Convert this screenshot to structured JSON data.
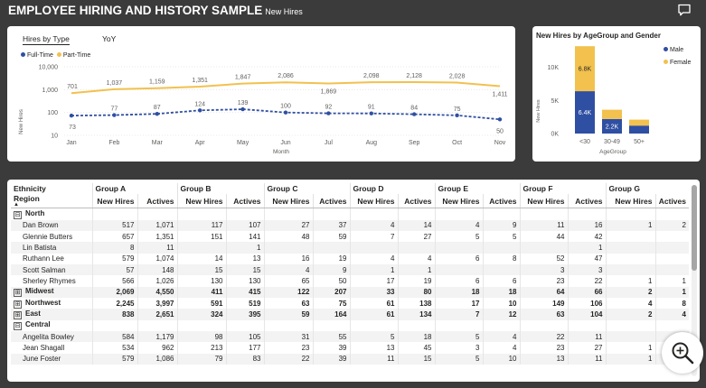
{
  "header": {
    "title": "EMPLOYEE HIRING AND HISTORY SAMPLE",
    "page_name": "New Hires"
  },
  "card1": {
    "tabs": [
      {
        "label": "Hires by Type",
        "active": true
      },
      {
        "label": "YoY",
        "active": false
      }
    ],
    "y_axis_label": "New Hires",
    "x_axis_label": "Month",
    "legend": [
      {
        "label": "Full-Time",
        "color": "#2f4fa2"
      },
      {
        "label": "Part-Time",
        "color": "#f2c14e"
      }
    ]
  },
  "card2": {
    "title": "New Hires by AgeGroup and Gender",
    "y_axis_label": "New Hires",
    "x_axis_label": "AgeGroup",
    "legend": [
      {
        "label": "Male",
        "color": "#2f4fa2"
      },
      {
        "label": "Female",
        "color": "#f2c14e"
      }
    ]
  },
  "chart_data": [
    {
      "type": "line",
      "title": "Hires by Type",
      "xlabel": "Month",
      "ylabel": "New Hires",
      "y_scale": "log",
      "ylim": [
        10,
        10000
      ],
      "y_ticks": [
        "10",
        "100",
        "1,000",
        "10,000"
      ],
      "categories": [
        "Jan",
        "Feb",
        "Mar",
        "Apr",
        "May",
        "Jun",
        "Jul",
        "Aug",
        "Sep",
        "Oct",
        "Nov"
      ],
      "series": [
        {
          "name": "Part-Time",
          "color": "#f2c14e",
          "style": "solid",
          "values": [
            701,
            1037,
            1159,
            1351,
            1847,
            2086,
            1869,
            2098,
            2128,
            2028,
            1411
          ],
          "labels": [
            "701",
            "1,037",
            "1,159",
            "1,351",
            "1,847",
            "2,086",
            "1,869",
            "2,098",
            "2,128",
            "2,028",
            "1,411"
          ]
        },
        {
          "name": "Full-Time",
          "color": "#2f4fa2",
          "style": "dashed",
          "values": [
            73,
            77,
            87,
            124,
            139,
            100,
            92,
            91,
            84,
            75,
            50
          ],
          "labels": [
            "73",
            "77",
            "87",
            "124",
            "139",
            "100",
            "92",
            "91",
            "84",
            "75",
            "50"
          ]
        }
      ]
    },
    {
      "type": "bar",
      "stacked": true,
      "title": "New Hires by AgeGroup and Gender",
      "xlabel": "AgeGroup",
      "ylabel": "New Hires",
      "ylim": [
        0,
        12000
      ],
      "y_ticks": [
        "0K",
        "5K",
        "10K"
      ],
      "categories": [
        "<30",
        "30-49",
        "50+"
      ],
      "series": [
        {
          "name": "Male",
          "color": "#2f4fa2",
          "values": [
            6400,
            2200,
            1200
          ],
          "labels": [
            "6.4K",
            "2.2K",
            ""
          ]
        },
        {
          "name": "Female",
          "color": "#f2c14e",
          "values": [
            6800,
            1400,
            900
          ],
          "labels": [
            "6.8K",
            "",
            ""
          ]
        }
      ]
    }
  ],
  "matrix": {
    "row_header_1": "Ethnicity",
    "row_header_2": "Region",
    "sort_indicator": "▲",
    "groups": [
      "Group A",
      "Group B",
      "Group C",
      "Group D",
      "Group E",
      "Group F",
      "Group G"
    ],
    "measures": [
      "New Hires",
      "Actives"
    ],
    "rows": [
      {
        "label": "North",
        "type": "group",
        "expander": "⊟",
        "values": [
          "",
          "",
          "",
          "",
          "",
          "",
          "",
          "",
          "",
          "",
          "",
          "",
          "",
          ""
        ]
      },
      {
        "label": "Dan Brown",
        "type": "child",
        "values": [
          "517",
          "1,071",
          "117",
          "107",
          "27",
          "37",
          "4",
          "14",
          "4",
          "9",
          "11",
          "16",
          "1",
          "2"
        ]
      },
      {
        "label": "Glennie Butters",
        "type": "child",
        "values": [
          "657",
          "1,351",
          "151",
          "141",
          "48",
          "59",
          "7",
          "27",
          "5",
          "5",
          "44",
          "42",
          "",
          ""
        ]
      },
      {
        "label": "Lin Batista",
        "type": "child",
        "values": [
          "8",
          "11",
          "",
          "1",
          "",
          "",
          "",
          "",
          "",
          "",
          "",
          "1",
          "",
          ""
        ]
      },
      {
        "label": "Ruthann Lee",
        "type": "child",
        "values": [
          "579",
          "1,074",
          "14",
          "13",
          "16",
          "19",
          "4",
          "4",
          "6",
          "8",
          "52",
          "47",
          "",
          ""
        ]
      },
      {
        "label": "Scott Salman",
        "type": "child",
        "values": [
          "57",
          "148",
          "15",
          "15",
          "4",
          "9",
          "1",
          "1",
          "",
          "",
          "3",
          "3",
          "",
          ""
        ]
      },
      {
        "label": "Sherley Rhymes",
        "type": "child",
        "values": [
          "566",
          "1,026",
          "130",
          "130",
          "65",
          "50",
          "17",
          "19",
          "6",
          "6",
          "23",
          "22",
          "1",
          "1"
        ]
      },
      {
        "label": "Midwest",
        "type": "collapsed",
        "expander": "⊞",
        "values": [
          "2,069",
          "4,550",
          "411",
          "415",
          "122",
          "207",
          "33",
          "80",
          "18",
          "18",
          "64",
          "66",
          "2",
          "1"
        ]
      },
      {
        "label": "Northwest",
        "type": "collapsed",
        "expander": "⊞",
        "values": [
          "2,245",
          "3,997",
          "591",
          "519",
          "63",
          "75",
          "61",
          "138",
          "17",
          "10",
          "149",
          "106",
          "4",
          "8"
        ]
      },
      {
        "label": "East",
        "type": "collapsed",
        "expander": "⊞",
        "values": [
          "838",
          "2,651",
          "324",
          "395",
          "59",
          "164",
          "61",
          "134",
          "7",
          "12",
          "63",
          "104",
          "2",
          "4"
        ]
      },
      {
        "label": "Central",
        "type": "group",
        "expander": "⊟",
        "values": [
          "",
          "",
          "",
          "",
          "",
          "",
          "",
          "",
          "",
          "",
          "",
          "",
          "",
          ""
        ]
      },
      {
        "label": "Angelita Bowley",
        "type": "child",
        "values": [
          "584",
          "1,179",
          "98",
          "105",
          "31",
          "55",
          "5",
          "18",
          "5",
          "4",
          "22",
          "11",
          "",
          ""
        ]
      },
      {
        "label": "Jean Shagall",
        "type": "child",
        "values": [
          "534",
          "962",
          "213",
          "177",
          "23",
          "39",
          "13",
          "45",
          "3",
          "4",
          "23",
          "27",
          "1",
          ""
        ]
      },
      {
        "label": "June Foster",
        "type": "child",
        "values": [
          "579",
          "1,086",
          "79",
          "83",
          "22",
          "39",
          "11",
          "15",
          "5",
          "10",
          "13",
          "11",
          "1",
          ""
        ]
      }
    ]
  }
}
